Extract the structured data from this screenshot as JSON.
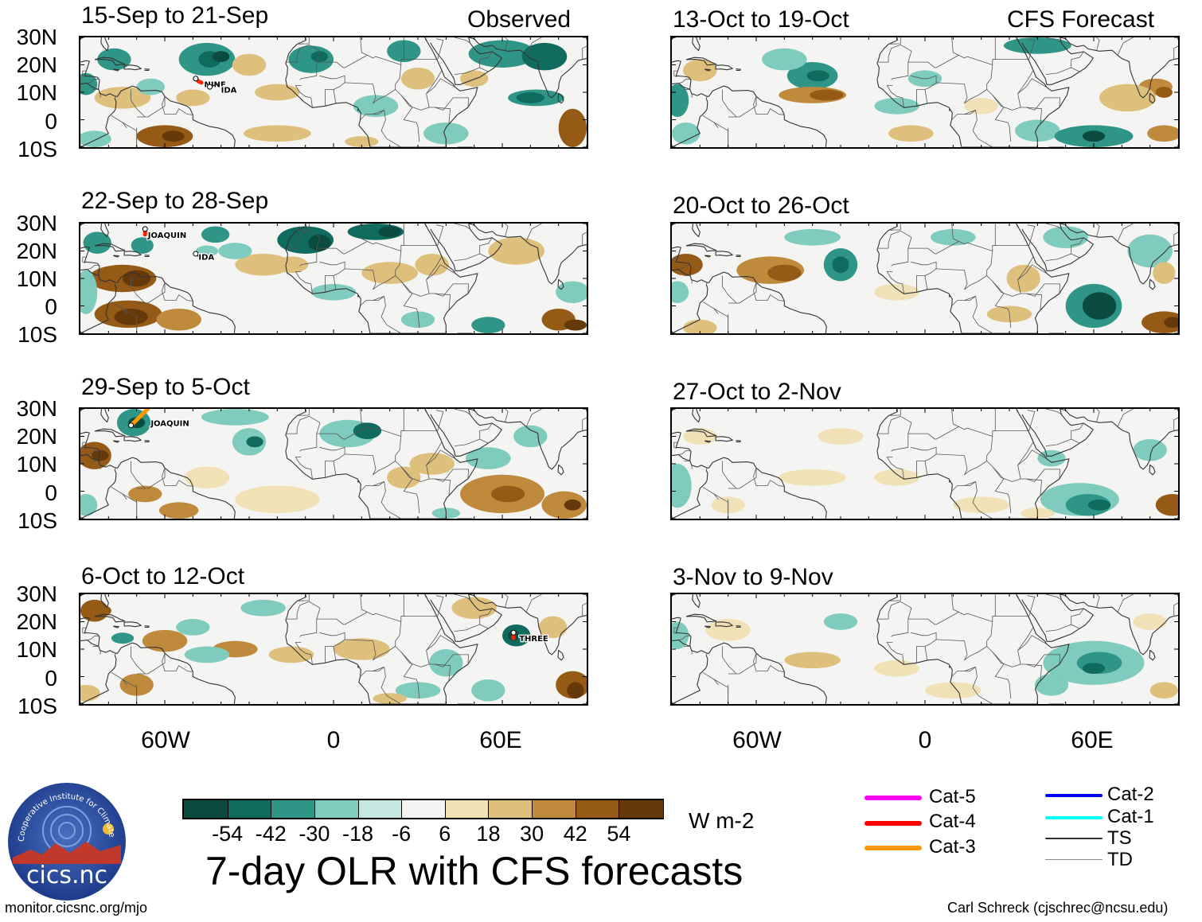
{
  "columns": {
    "observed": "Observed",
    "forecast": "CFS Forecast"
  },
  "panels": [
    {
      "label": "15-Sep to 21-Sep",
      "column": "observed",
      "storms": [
        "NINE",
        "IDA"
      ]
    },
    {
      "label": "22-Sep to 28-Sep",
      "column": "observed",
      "storms": [
        "JOAQUIN",
        "IDA"
      ]
    },
    {
      "label": "29-Sep to 5-Oct",
      "column": "observed",
      "storms": [
        "JOAQUIN"
      ]
    },
    {
      "label": "6-Oct to 12-Oct",
      "column": "observed",
      "storms": [
        "THREE"
      ]
    },
    {
      "label": "13-Oct to 19-Oct",
      "column": "forecast",
      "storms": []
    },
    {
      "label": "20-Oct to 26-Oct",
      "column": "forecast",
      "storms": []
    },
    {
      "label": "27-Oct to 2-Nov",
      "column": "forecast",
      "storms": []
    },
    {
      "label": "3-Nov to 9-Nov",
      "column": "forecast",
      "storms": []
    }
  ],
  "lat_ticks": [
    "30N",
    "20N",
    "10N",
    "0",
    "10S"
  ],
  "lon_ticks": [
    "60W",
    "0",
    "60E"
  ],
  "colorbar": {
    "ticks": [
      "-54",
      "-42",
      "-30",
      "-18",
      "-6",
      "6",
      "18",
      "30",
      "42",
      "54"
    ],
    "colors": [
      "#0b4a3f",
      "#0e6b5e",
      "#2f9587",
      "#7fcbbd",
      "#c4e8e1",
      "#f4f4f2",
      "#f1e1b6",
      "#dfbf7c",
      "#c08a3c",
      "#955a15",
      "#66390b"
    ],
    "units": "W m-2"
  },
  "legend": [
    {
      "label": "Cat-5",
      "color": "#ff00ff"
    },
    {
      "label": "Cat-4",
      "color": "#ff0000"
    },
    {
      "label": "Cat-3",
      "color": "#ff9900"
    },
    {
      "label": "Cat-2",
      "color": "#0000ff"
    },
    {
      "label": "Cat-1",
      "color": "#00ffff"
    },
    {
      "label": "TS",
      "color": "#333333"
    },
    {
      "label": "TD",
      "color": "#888888"
    }
  ],
  "title": "7-day OLR with CFS forecasts",
  "logo_text": "cics.nc",
  "logo_ring_text": "Cooperative Institute for Climate and Satellites",
  "footer_left": "monitor.cicsnc.org/mjo",
  "footer_right": "Carl Schreck (cjschrec@ncsu.edu)"
}
